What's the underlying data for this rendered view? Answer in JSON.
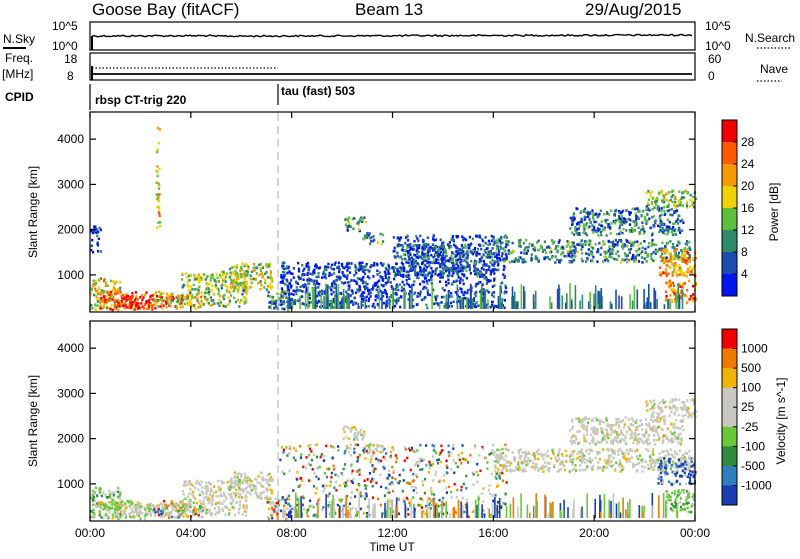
{
  "header": {
    "station": "Goose Bay (fitACF)",
    "beam": "Beam 13",
    "date": "29/Aug/2015"
  },
  "noise_panel": {
    "left_label": "N.Sky",
    "left_ticks": [
      "10^5",
      "10^0"
    ],
    "right_ticks": [
      "10^5",
      "10^0"
    ],
    "right_label": "N.Search"
  },
  "freq_panel": {
    "left_label_1": "Freq.",
    "left_label_2": "[MHz]",
    "left_ticks": [
      "18",
      "8"
    ],
    "right_ticks": [
      "60",
      "0"
    ],
    "right_label": "Nave"
  },
  "cpid_panel": {
    "label": "CPID",
    "programs": [
      {
        "name": "rbsp CT-trig 220",
        "start_hour": 0.0
      },
      {
        "name": "tau (fast) 503",
        "start_hour": 7.5
      }
    ]
  },
  "x_axis": {
    "label": "Time UT",
    "ticks": [
      "00:00",
      "04:00",
      "08:00",
      "12:00",
      "16:00",
      "20:00",
      "00:00"
    ],
    "range_hours": [
      0,
      24
    ]
  },
  "chart_data": [
    {
      "type": "heatmap",
      "name": "power",
      "ylabel": "Slant Range [km]",
      "yticks": [
        "1000",
        "2000",
        "3000",
        "4000"
      ],
      "ylim_km": [
        180,
        4600
      ],
      "colorbar": {
        "label": "Power [dB]",
        "ticks": [
          "4",
          "8",
          "12",
          "16",
          "20",
          "24",
          "28"
        ],
        "range": [
          0,
          30
        ],
        "colors": [
          "#0016f0",
          "#1c4cb0",
          "#2f8a6a",
          "#5dbf3a",
          "#f0d200",
          "#f59a00",
          "#ff5a00",
          "#f00000"
        ]
      },
      "regions": [
        {
          "t": [
            0.0,
            1.2
          ],
          "r": [
            250,
            950
          ],
          "level": 0.55
        },
        {
          "t": [
            0.3,
            2.5
          ],
          "r": [
            250,
            650
          ],
          "level": 0.85
        },
        {
          "t": [
            1.2,
            3.6
          ],
          "r": [
            280,
            560
          ],
          "level": 0.95
        },
        {
          "t": [
            2.5,
            4.5
          ],
          "r": [
            280,
            650
          ],
          "level": 0.55
        },
        {
          "t": [
            3.6,
            6.2
          ],
          "r": [
            330,
            1100
          ],
          "level": 0.45
        },
        {
          "t": [
            5.5,
            7.2
          ],
          "r": [
            700,
            1280
          ],
          "level": 0.5
        },
        {
          "t": [
            7.0,
            7.9
          ],
          "r": [
            250,
            700
          ],
          "level": 0.3
        },
        {
          "t": [
            0.0,
            0.4
          ],
          "r": [
            1500,
            2100
          ],
          "level": 0.15
        },
        {
          "t": [
            2.6,
            2.75
          ],
          "r": [
            2000,
            4300
          ],
          "level": 0.6
        },
        {
          "t": [
            10.0,
            10.9
          ],
          "r": [
            2000,
            2300
          ],
          "level": 0.3
        },
        {
          "t": [
            10.8,
            11.6
          ],
          "r": [
            1700,
            1950
          ],
          "level": 0.3
        },
        {
          "t": [
            7.5,
            12.0
          ],
          "r": [
            300,
            1300
          ],
          "level": 0.12
        },
        {
          "t": [
            12.0,
            16.5
          ],
          "r": [
            300,
            1900
          ],
          "level": 0.12
        },
        {
          "t": [
            12.0,
            16.0
          ],
          "r": [
            1000,
            1700
          ],
          "level": 0.2
        },
        {
          "t": [
            16.0,
            23.8
          ],
          "r": [
            1300,
            1800
          ],
          "level": 0.3
        },
        {
          "t": [
            19.0,
            23.5
          ],
          "r": [
            1900,
            2500
          ],
          "level": 0.25
        },
        {
          "t": [
            22.0,
            24.0
          ],
          "r": [
            2500,
            2900
          ],
          "level": 0.45
        },
        {
          "t": [
            22.5,
            24.0
          ],
          "r": [
            1000,
            1600
          ],
          "level": 0.7
        },
        {
          "t": [
            22.8,
            24.0
          ],
          "r": [
            400,
            900
          ],
          "level": 0.75
        }
      ]
    },
    {
      "type": "heatmap",
      "name": "velocity",
      "ylabel": "Slant Range [km]",
      "yticks": [
        "1000",
        "2000",
        "3000",
        "4000"
      ],
      "ylim_km": [
        180,
        4600
      ],
      "colorbar": {
        "label": "Velocity [m s^-1]",
        "ticks": [
          "1000",
          "500",
          "100",
          "25",
          "-25",
          "-100",
          "-500",
          "-1000"
        ],
        "colors": [
          "#1b3fb0",
          "#2f7fbf",
          "#2f8a3a",
          "#69c83a",
          "#c8c8c0",
          "#c8c8c0",
          "#f0b400",
          "#f07a00",
          "#f00000"
        ]
      },
      "regions": [
        {
          "t": [
            0.0,
            1.2
          ],
          "r": [
            250,
            950
          ],
          "mix": "green"
        },
        {
          "t": [
            0.3,
            2.5
          ],
          "r": [
            250,
            650
          ],
          "mix": "green-grey"
        },
        {
          "t": [
            1.2,
            3.6
          ],
          "r": [
            280,
            560
          ],
          "mix": "grey"
        },
        {
          "t": [
            2.5,
            4.5
          ],
          "r": [
            280,
            650
          ],
          "mix": "mixed"
        },
        {
          "t": [
            3.6,
            6.2
          ],
          "r": [
            330,
            1100
          ],
          "mix": "grey"
        },
        {
          "t": [
            5.5,
            7.2
          ],
          "r": [
            700,
            1280
          ],
          "mix": "grey"
        },
        {
          "t": [
            7.0,
            7.9
          ],
          "r": [
            250,
            700
          ],
          "mix": "mixed"
        },
        {
          "t": [
            10.0,
            10.9
          ],
          "r": [
            2000,
            2300
          ],
          "mix": "grey"
        },
        {
          "t": [
            10.8,
            11.6
          ],
          "r": [
            1700,
            1950
          ],
          "mix": "grey"
        },
        {
          "t": [
            7.5,
            16.5
          ],
          "r": [
            300,
            1900
          ],
          "mix": "mixed"
        },
        {
          "t": [
            16.0,
            23.8
          ],
          "r": [
            1300,
            1800
          ],
          "mix": "grey"
        },
        {
          "t": [
            19.0,
            23.5
          ],
          "r": [
            1900,
            2500
          ],
          "mix": "grey"
        },
        {
          "t": [
            22.0,
            24.0
          ],
          "r": [
            2500,
            2900
          ],
          "mix": "grey"
        },
        {
          "t": [
            22.5,
            24.0
          ],
          "r": [
            1000,
            1600
          ],
          "mix": "blue"
        },
        {
          "t": [
            22.8,
            24.0
          ],
          "r": [
            400,
            900
          ],
          "mix": "green"
        }
      ]
    }
  ]
}
